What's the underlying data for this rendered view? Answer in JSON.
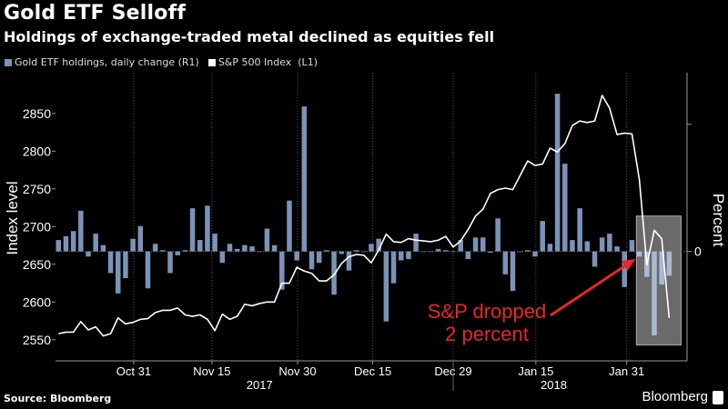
{
  "header": {
    "title": "Gold ETF Selloff",
    "subtitle": "Holdings of exchange-traded metal declined as equities fell"
  },
  "footer": {
    "source": "Source: Bloomberg",
    "brand": "Bloomberg"
  },
  "colors": {
    "bar": "#7b93b6",
    "bar_highlight": "#a9b9d3",
    "line": "#ffffff",
    "annotation": "#e8262b",
    "highlight_box": "#6a6a6a"
  },
  "chart_data": {
    "type": "bar+line",
    "title": "Gold ETF Selloff",
    "subtitle": "Holdings of exchange-traded metal declined as equities fell",
    "ylabel_left": "Index level",
    "ylabel_right": "Percent",
    "ylim_left": [
      2522,
      2898
    ],
    "yticks_left": [
      2550,
      2600,
      2650,
      2700,
      2750,
      2800,
      2850
    ],
    "ylim_right": [
      -0.86,
      1.37
    ],
    "yticks_right": [
      0,
      1
    ],
    "ytick_labels_right": [
      "0",
      ""
    ],
    "xlim": [
      -0.4,
      84.4
    ],
    "xticks": [
      {
        "label": "Oct 31",
        "index": 10.1
      },
      {
        "label": "Nov 15",
        "index": 20.6
      },
      {
        "label": "Nov 30",
        "index": 32.1
      },
      {
        "label": "Dec 15",
        "index": 42.2
      },
      {
        "label": "Dec 29",
        "index": 53
      },
      {
        "label": "Jan 15",
        "index": 64.1
      },
      {
        "label": "Jan 31",
        "index": 76.3
      }
    ],
    "years": [
      {
        "label": "2017",
        "index": 27
      },
      {
        "label": "2018",
        "index": 66.5
      }
    ],
    "year_divider_index": 53,
    "grid": "vertical dashed at x ticks",
    "legend": {
      "placement": "top-left",
      "entries": [
        "Gold ETF holdings, daily change (R1)",
        "S&P 500 Index  (L1)"
      ]
    },
    "series": [
      {
        "name": "Gold ETF holdings, daily change (R1)",
        "type": "bar",
        "axis": "right",
        "values": [
          0.09,
          0.12,
          0.16,
          0.32,
          -0.04,
          0.14,
          0.05,
          -0.17,
          -0.33,
          -0.21,
          0.1,
          0.2,
          -0.29,
          0.06,
          0.01,
          -0.17,
          -0.03,
          0.01,
          0.34,
          0.09,
          0.36,
          0.14,
          -0.09,
          0.06,
          0.02,
          0.05,
          0.04,
          0,
          0.18,
          0.05,
          -0.3,
          0.4,
          -0.07,
          1.14,
          -0.14,
          -0.09,
          0.01,
          -0.34,
          -0.02,
          -0.15,
          0.01,
          0,
          0.06,
          0.1,
          -0.55,
          -0.25,
          -0.07,
          -0.06,
          0.14,
          0,
          0,
          0.02,
          0.01,
          0,
          0.09,
          -0.06,
          0.11,
          0.11,
          -0.01,
          0.26,
          -0.18,
          -0.31,
          0,
          0.01,
          -0.04,
          0.24,
          0.06,
          1.24,
          0.69,
          0.09,
          0.34,
          0.08,
          -0.12,
          0.11,
          0.14,
          0.04,
          -0.28,
          0.09,
          -0.04,
          -0.2,
          -0.66,
          -0.26,
          -0.19
        ]
      },
      {
        "name": "S&P 500 Index (L1)",
        "type": "line",
        "axis": "left",
        "values": [
          2558,
          2560,
          2560,
          2574,
          2563,
          2567,
          2555,
          2558,
          2579,
          2571,
          2573,
          2577,
          2578,
          2586,
          2589,
          2589,
          2592,
          2583,
          2581,
          2583,
          2577,
          2562,
          2584,
          2577,
          2581,
          2597,
          2595,
          2598,
          2600,
          2600,
          2625,
          2625,
          2646,
          2641,
          2638,
          2628,
          2628,
          2636,
          2651,
          2660,
          2663,
          2662,
          2652,
          2669,
          2690,
          2680,
          2679,
          2684,
          2682,
          2681,
          2680,
          2682,
          2687,
          2673,
          2681,
          2696,
          2714,
          2723,
          2744,
          2749,
          2751,
          2749,
          2768,
          2787,
          2781,
          2783,
          2804,
          2799,
          2810,
          2834,
          2840,
          2838,
          2840,
          2874,
          2857,
          2822,
          2824,
          2823,
          2762,
          2649,
          2695,
          2684,
          2579
        ]
      }
    ],
    "highlight": {
      "from_index": 77.6,
      "to_index": 83.6,
      "y_left": [
        2543,
        2714
      ],
      "bars_from_index": 78
    },
    "annotation": {
      "lines": [
        "S&P dropped",
        "2 percent"
      ],
      "arrow_to_index": 77.5,
      "arrow_to_value": 2657
    }
  }
}
